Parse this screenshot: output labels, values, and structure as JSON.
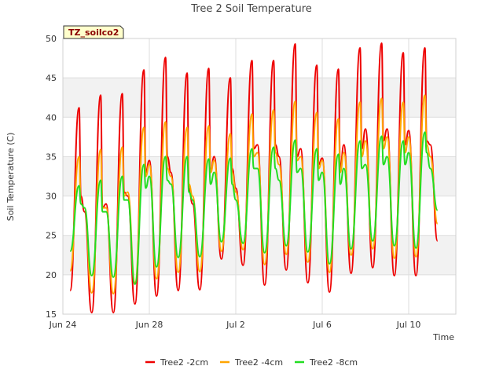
{
  "chart_data": {
    "type": "line",
    "title": "Tree 2 Soil Temperature",
    "xlabel": "Time",
    "ylabel": "Soil Temperature (C)",
    "badge": "TZ_soilco2",
    "ylim": [
      15,
      50
    ],
    "yticks": [
      15,
      20,
      25,
      30,
      35,
      40,
      45,
      50
    ],
    "xlim": [
      "2020-06-24",
      "2020-07-12"
    ],
    "xticks": [
      {
        "date": "2020-06-24",
        "label": "Jun 24"
      },
      {
        "date": "2020-06-28",
        "label": "Jun 28"
      },
      {
        "date": "2020-07-02",
        "label": "Jul 2"
      },
      {
        "date": "2020-07-06",
        "label": "Jul 6"
      },
      {
        "date": "2020-07-10",
        "label": "Jul 10"
      }
    ],
    "grid": true,
    "legend": "bottom",
    "series": [
      {
        "name": "Tree2 -2cm",
        "color": "#ee0000",
        "x": [
          "2020-06-24T08:00",
          "2020-06-24T18:00",
          "2020-06-24T20:00",
          "2020-06-25T00:00",
          "2020-06-25T08:00",
          "2020-06-25T18:00",
          "2020-06-25T20:00",
          "2020-06-26T00:00",
          "2020-06-26T08:00",
          "2020-06-26T18:00",
          "2020-06-26T20:00",
          "2020-06-27T00:00",
          "2020-06-27T08:00",
          "2020-06-27T18:00",
          "2020-06-27T20:00",
          "2020-06-28T00:00",
          "2020-06-28T08:00",
          "2020-06-28T18:00",
          "2020-06-28T20:00",
          "2020-06-29T00:00",
          "2020-06-29T08:00",
          "2020-06-29T18:00",
          "2020-06-29T20:00",
          "2020-06-30T00:00",
          "2020-06-30T08:00",
          "2020-06-30T18:00",
          "2020-06-30T20:00",
          "2020-07-01T00:00",
          "2020-07-01T08:00",
          "2020-07-01T18:00",
          "2020-07-01T20:00",
          "2020-07-02T00:00",
          "2020-07-02T08:00",
          "2020-07-02T18:00",
          "2020-07-02T20:00",
          "2020-07-03T00:00",
          "2020-07-03T08:00",
          "2020-07-03T18:00",
          "2020-07-03T20:00",
          "2020-07-04T00:00",
          "2020-07-04T08:00",
          "2020-07-04T18:00",
          "2020-07-04T20:00",
          "2020-07-05T00:00",
          "2020-07-05T08:00",
          "2020-07-05T18:00",
          "2020-07-05T20:00",
          "2020-07-06T00:00",
          "2020-07-06T08:00",
          "2020-07-06T18:00",
          "2020-07-06T20:00",
          "2020-07-07T00:00",
          "2020-07-07T08:00",
          "2020-07-07T18:00",
          "2020-07-07T20:00",
          "2020-07-08T00:00",
          "2020-07-08T08:00",
          "2020-07-08T18:00",
          "2020-07-08T20:00",
          "2020-07-09T00:00",
          "2020-07-09T08:00",
          "2020-07-09T18:00",
          "2020-07-09T20:00",
          "2020-07-10T00:00",
          "2020-07-10T08:00",
          "2020-07-10T18:00",
          "2020-07-10T20:00",
          "2020-07-11T00:00",
          "2020-07-11T08:00"
        ],
        "y": [
          18.0,
          41.2,
          30.0,
          28.0,
          15.2,
          42.8,
          28.5,
          29.0,
          15.2,
          43.0,
          30.5,
          30.0,
          16.3,
          46.0,
          33.0,
          34.5,
          17.3,
          47.6,
          35.0,
          33.0,
          18.0,
          45.6,
          31.0,
          29.0,
          18.1,
          46.2,
          33.0,
          35.0,
          22.0,
          45.0,
          33.5,
          31.0,
          21.2,
          47.2,
          36.0,
          36.5,
          18.7,
          47.2,
          36.5,
          35.0,
          20.6,
          49.3,
          35.0,
          36.0,
          19.0,
          46.6,
          34.0,
          34.8,
          17.8,
          46.1,
          33.5,
          36.5,
          20.2,
          48.8,
          36.0,
          38.5,
          20.9,
          49.4,
          37.0,
          38.5,
          19.9,
          48.2,
          36.5,
          38.3,
          19.9,
          48.8,
          37.0,
          36.5,
          24.3
        ]
      },
      {
        "name": "Tree2 -4cm",
        "color": "#ffa500",
        "x": [
          "2020-06-24T08:00",
          "2020-06-24T18:00",
          "2020-06-24T20:00",
          "2020-06-25T00:00",
          "2020-06-25T08:00",
          "2020-06-25T18:00",
          "2020-06-25T20:00",
          "2020-06-26T00:00",
          "2020-06-26T08:00",
          "2020-06-26T18:00",
          "2020-06-26T20:00",
          "2020-06-27T00:00",
          "2020-06-27T08:00",
          "2020-06-27T18:00",
          "2020-06-27T20:00",
          "2020-06-28T00:00",
          "2020-06-28T08:00",
          "2020-06-28T18:00",
          "2020-06-28T20:00",
          "2020-06-29T00:00",
          "2020-06-29T08:00",
          "2020-06-29T18:00",
          "2020-06-29T20:00",
          "2020-06-30T00:00",
          "2020-06-30T08:00",
          "2020-06-30T18:00",
          "2020-06-30T20:00",
          "2020-07-01T00:00",
          "2020-07-01T08:00",
          "2020-07-01T18:00",
          "2020-07-01T20:00",
          "2020-07-02T00:00",
          "2020-07-02T08:00",
          "2020-07-02T18:00",
          "2020-07-02T20:00",
          "2020-07-03T00:00",
          "2020-07-03T08:00",
          "2020-07-03T18:00",
          "2020-07-03T20:00",
          "2020-07-04T00:00",
          "2020-07-04T08:00",
          "2020-07-04T18:00",
          "2020-07-04T20:00",
          "2020-07-05T00:00",
          "2020-07-05T08:00",
          "2020-07-05T18:00",
          "2020-07-05T20:00",
          "2020-07-06T00:00",
          "2020-07-06T08:00",
          "2020-07-06T18:00",
          "2020-07-06T20:00",
          "2020-07-07T00:00",
          "2020-07-07T08:00",
          "2020-07-07T18:00",
          "2020-07-07T20:00",
          "2020-07-08T00:00",
          "2020-07-08T08:00",
          "2020-07-08T18:00",
          "2020-07-08T20:00",
          "2020-07-09T00:00",
          "2020-07-09T08:00",
          "2020-07-09T18:00",
          "2020-07-09T20:00",
          "2020-07-10T00:00",
          "2020-07-10T08:00",
          "2020-07-10T18:00",
          "2020-07-10T20:00",
          "2020-07-11T00:00",
          "2020-07-11T08:00"
        ],
        "y": [
          20.5,
          35.0,
          29.0,
          28.5,
          17.7,
          35.9,
          28.5,
          28.5,
          17.6,
          36.2,
          30.0,
          30.5,
          19.0,
          38.7,
          32.5,
          34.0,
          19.5,
          39.4,
          33.5,
          32.5,
          20.3,
          38.7,
          31.5,
          30.0,
          20.4,
          38.9,
          33.0,
          34.5,
          23.0,
          37.9,
          33.0,
          30.5,
          23.2,
          40.4,
          35.0,
          35.5,
          21.3,
          40.9,
          35.5,
          34.0,
          22.6,
          42.0,
          34.5,
          35.0,
          21.6,
          40.6,
          33.5,
          34.5,
          20.3,
          39.8,
          33.0,
          35.5,
          22.5,
          41.9,
          35.0,
          37.0,
          23.3,
          42.4,
          36.0,
          37.5,
          22.1,
          41.9,
          35.5,
          37.5,
          22.3,
          42.8,
          36.5,
          35.0,
          26.5
        ]
      },
      {
        "name": "Tree2 -8cm",
        "color": "#22dd22",
        "x": [
          "2020-06-24T08:00",
          "2020-06-24T18:00",
          "2020-06-24T20:00",
          "2020-06-25T00:00",
          "2020-06-25T08:00",
          "2020-06-25T18:00",
          "2020-06-25T20:00",
          "2020-06-26T00:00",
          "2020-06-26T08:00",
          "2020-06-26T18:00",
          "2020-06-26T20:00",
          "2020-06-27T00:00",
          "2020-06-27T08:00",
          "2020-06-27T18:00",
          "2020-06-27T20:00",
          "2020-06-28T00:00",
          "2020-06-28T08:00",
          "2020-06-28T18:00",
          "2020-06-28T20:00",
          "2020-06-29T00:00",
          "2020-06-29T08:00",
          "2020-06-29T18:00",
          "2020-06-29T20:00",
          "2020-06-30T00:00",
          "2020-06-30T08:00",
          "2020-06-30T18:00",
          "2020-06-30T20:00",
          "2020-07-01T00:00",
          "2020-07-01T08:00",
          "2020-07-01T18:00",
          "2020-07-01T20:00",
          "2020-07-02T00:00",
          "2020-07-02T08:00",
          "2020-07-02T18:00",
          "2020-07-02T20:00",
          "2020-07-03T00:00",
          "2020-07-03T08:00",
          "2020-07-03T18:00",
          "2020-07-03T20:00",
          "2020-07-04T00:00",
          "2020-07-04T08:00",
          "2020-07-04T18:00",
          "2020-07-04T20:00",
          "2020-07-05T00:00",
          "2020-07-05T08:00",
          "2020-07-05T18:00",
          "2020-07-05T20:00",
          "2020-07-06T00:00",
          "2020-07-06T08:00",
          "2020-07-06T18:00",
          "2020-07-06T20:00",
          "2020-07-07T00:00",
          "2020-07-07T08:00",
          "2020-07-07T18:00",
          "2020-07-07T20:00",
          "2020-07-08T00:00",
          "2020-07-08T08:00",
          "2020-07-08T18:00",
          "2020-07-08T20:00",
          "2020-07-09T00:00",
          "2020-07-09T08:00",
          "2020-07-09T18:00",
          "2020-07-09T20:00",
          "2020-07-10T00:00",
          "2020-07-10T08:00",
          "2020-07-10T18:00",
          "2020-07-10T20:00",
          "2020-07-11T00:00",
          "2020-07-11T08:00"
        ],
        "y": [
          23.0,
          31.3,
          29.0,
          28.5,
          19.9,
          32.0,
          28.0,
          28.0,
          19.7,
          32.5,
          29.5,
          29.5,
          18.8,
          34.0,
          31.0,
          32.5,
          21.0,
          35.0,
          32.0,
          31.5,
          22.2,
          35.0,
          30.5,
          29.5,
          22.3,
          34.7,
          31.5,
          33.0,
          24.2,
          34.8,
          31.5,
          29.5,
          24.0,
          36.0,
          33.5,
          33.5,
          22.8,
          36.2,
          33.5,
          32.0,
          23.7,
          37.1,
          33.0,
          33.5,
          22.9,
          36.0,
          32.0,
          33.0,
          21.4,
          35.3,
          31.5,
          33.5,
          23.3,
          37.0,
          33.5,
          34.0,
          24.3,
          37.6,
          34.0,
          35.0,
          23.7,
          37.0,
          34.0,
          35.5,
          23.4,
          38.1,
          35.5,
          33.5,
          28.2
        ]
      }
    ]
  }
}
